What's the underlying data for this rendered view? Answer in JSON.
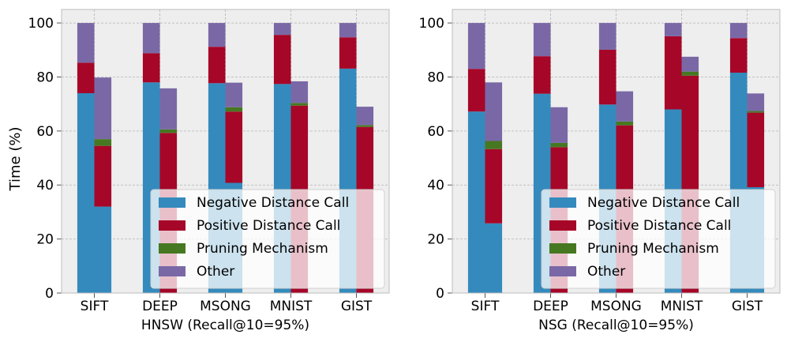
{
  "colors": {
    "negative": "#348ABD",
    "positive": "#A60628",
    "pruning": "#467821",
    "other": "#7A68A6",
    "plot_bg": "#EEEEEE",
    "grid": "#B2B2B2"
  },
  "ylabel": "Time (%)",
  "legend": [
    "Negative Distance Call",
    "Positive Distance Call",
    "Pruning Mechanism",
    "Other"
  ],
  "chart_data": [
    {
      "type": "bar",
      "stacked": true,
      "title": "",
      "xlabel": "HNSW (Recall@10=95%)",
      "ylabel": "Time (%)",
      "ylim": [
        0,
        105
      ],
      "yticks": [
        0,
        20,
        40,
        60,
        80,
        100
      ],
      "grid": true,
      "legend_position": "lower-right",
      "categories": [
        "SIFT",
        "DEEP",
        "MSONG",
        "MNIST",
        "GIST"
      ],
      "groups": [
        {
          "name": "bar-1",
          "series": [
            {
              "name": "Negative Distance Call",
              "values": [
                74.0,
                78.0,
                77.7,
                77.4,
                83.1
              ]
            },
            {
              "name": "Positive Distance Call",
              "values": [
                11.3,
                10.8,
                13.5,
                18.2,
                11.6
              ]
            },
            {
              "name": "Pruning Mechanism",
              "values": [
                0,
                0,
                0,
                0,
                0
              ]
            },
            {
              "name": "Other",
              "values": [
                14.7,
                11.2,
                8.8,
                4.4,
                5.3
              ]
            }
          ]
        },
        {
          "name": "bar-2",
          "series": [
            {
              "name": "Negative Distance Call",
              "values": [
                32.0,
                0,
                40.8,
                0,
                0
              ]
            },
            {
              "name": "Positive Distance Call",
              "values": [
                22.5,
                59.3,
                26.4,
                69.4,
                61.5
              ]
            },
            {
              "name": "Pruning Mechanism",
              "values": [
                2.5,
                1.3,
                1.6,
                1.0,
                0.7
              ]
            },
            {
              "name": "Other",
              "values": [
                22.8,
                15.2,
                9.1,
                8.0,
                6.8
              ]
            }
          ]
        }
      ]
    },
    {
      "type": "bar",
      "stacked": true,
      "title": "",
      "xlabel": "NSG (Recall@10=95%)",
      "ylabel": "",
      "ylim": [
        0,
        105
      ],
      "yticks": [
        0,
        20,
        40,
        60,
        80,
        100
      ],
      "grid": true,
      "legend_position": "lower-right",
      "categories": [
        "SIFT",
        "DEEP",
        "MSONG",
        "MNIST",
        "GIST"
      ],
      "groups": [
        {
          "name": "bar-1",
          "series": [
            {
              "name": "Negative Distance Call",
              "values": [
                67.2,
                73.8,
                69.8,
                68.0,
                81.6
              ]
            },
            {
              "name": "Positive Distance Call",
              "values": [
                15.8,
                13.9,
                20.3,
                27.1,
                12.8
              ]
            },
            {
              "name": "Pruning Mechanism",
              "values": [
                0,
                0,
                0,
                0,
                0
              ]
            },
            {
              "name": "Other",
              "values": [
                17.0,
                12.3,
                9.9,
                4.9,
                5.6
              ]
            }
          ]
        },
        {
          "name": "bar-2",
          "series": [
            {
              "name": "Negative Distance Call",
              "values": [
                25.8,
                0,
                0,
                0,
                39.2
              ]
            },
            {
              "name": "Positive Distance Call",
              "values": [
                27.5,
                54.0,
                62.1,
                80.5,
                27.6
              ]
            },
            {
              "name": "Pruning Mechanism",
              "values": [
                3.0,
                1.6,
                1.4,
                1.5,
                0.6
              ]
            },
            {
              "name": "Other",
              "values": [
                21.7,
                13.2,
                11.2,
                5.5,
                6.5
              ]
            }
          ]
        }
      ]
    }
  ]
}
